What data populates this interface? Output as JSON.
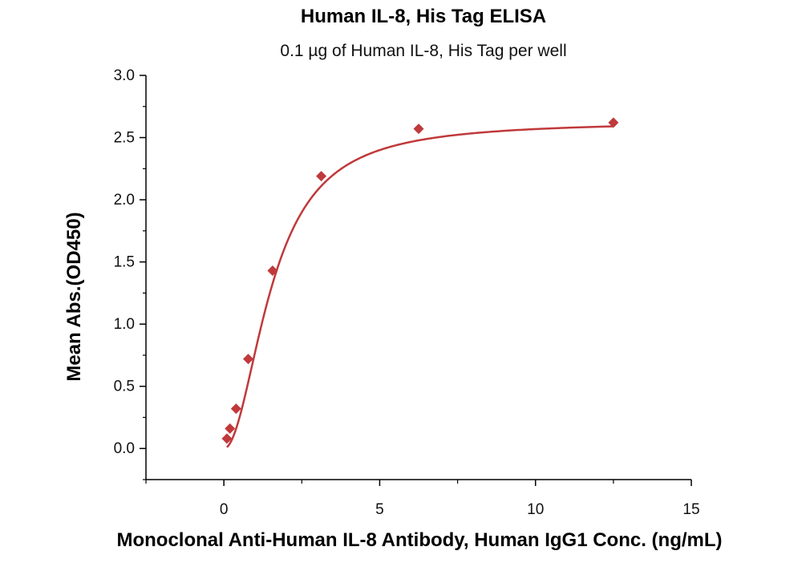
{
  "chart_data": {
    "type": "scatter",
    "title": "Human IL-8, His Tag ELISA",
    "subtitle": "0.1 µg of Human IL-8, His Tag per well",
    "xlabel": "Monoclonal Anti-Human IL-8 Antibody, Human IgG1 Conc. (ng/mL)",
    "ylabel": "Mean Abs.(OD450)",
    "xlim": [
      -2.5,
      15
    ],
    "ylim": [
      -0.25,
      3.0
    ],
    "x_ticks": [
      "0",
      "5",
      "10",
      "15"
    ],
    "y_ticks": [
      "0.0",
      "0.5",
      "1.0",
      "1.5",
      "2.0",
      "2.5",
      "3.0"
    ],
    "grid": false,
    "colors": {
      "series": "#c0393b"
    },
    "series": [
      {
        "points_x": [
          0.098,
          0.195,
          0.391,
          0.781,
          1.563,
          3.125,
          6.25,
          12.5
        ],
        "points_y": [
          0.08,
          0.16,
          0.32,
          0.72,
          1.43,
          2.19,
          2.57,
          2.62
        ],
        "fit": {
          "model": "4PL",
          "bottom": 0.0,
          "top": 2.63,
          "ec50": 1.55,
          "hill": 2.0
        }
      }
    ]
  }
}
